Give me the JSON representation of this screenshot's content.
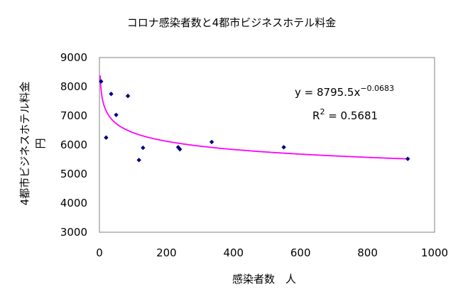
{
  "chart_data": {
    "type": "scatter",
    "title": "コロナ感染者数と4都市ビジネスホテル料金",
    "xlabel": "感染者数　人",
    "ylabel_line1": "4都市ビジネスホテル料金",
    "ylabel_line2": "円",
    "xlim": [
      0,
      1000
    ],
    "ylim": [
      3000,
      9000
    ],
    "x_ticks": [
      0,
      200,
      400,
      600,
      800,
      1000
    ],
    "y_ticks": [
      3000,
      4000,
      5000,
      6000,
      7000,
      8000,
      9000
    ],
    "grid": false,
    "series": [
      {
        "marker": "diamond",
        "color": "#000080",
        "points": [
          {
            "x": 5,
            "y": 8180
          },
          {
            "x": 20,
            "y": 6250
          },
          {
            "x": 35,
            "y": 7750
          },
          {
            "x": 50,
            "y": 7030
          },
          {
            "x": 85,
            "y": 7680
          },
          {
            "x": 118,
            "y": 5480
          },
          {
            "x": 130,
            "y": 5900
          },
          {
            "x": 235,
            "y": 5920
          },
          {
            "x": 240,
            "y": 5850
          },
          {
            "x": 335,
            "y": 6100
          },
          {
            "x": 550,
            "y": 5920
          },
          {
            "x": 920,
            "y": 5520
          }
        ]
      }
    ],
    "trendline": {
      "type": "power",
      "coefficient": 8795.5,
      "exponent": -0.0683,
      "color": "#ff00ff",
      "equation_base": "y = 8795.5x",
      "equation_exponent": "−0.0683",
      "r2_label": "R",
      "r2_exponent": "2",
      "r2_value": " = 0.5681"
    }
  }
}
